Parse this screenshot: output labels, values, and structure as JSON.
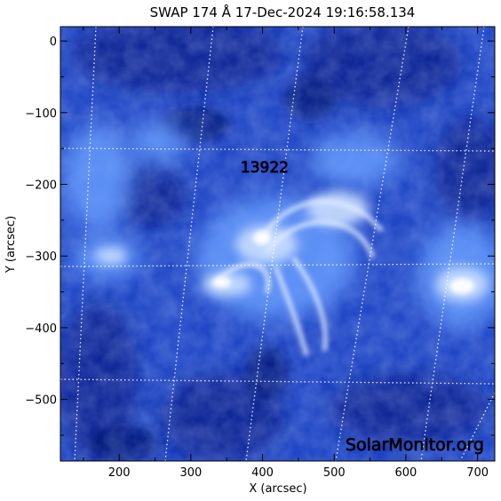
{
  "title": "SWAP 174 Å 17-Dec-2024 19:16:58.134",
  "axes": {
    "x_label": "X (arcsec)",
    "y_label": "Y (arcsec)",
    "x_range": [
      118,
      724
    ],
    "y_range": [
      -586,
      20
    ],
    "x_ticks": [
      {
        "value": 200,
        "label": "200"
      },
      {
        "value": 300,
        "label": "300"
      },
      {
        "value": 400,
        "label": "400"
      },
      {
        "value": 500,
        "label": "500"
      },
      {
        "value": 600,
        "label": "600"
      },
      {
        "value": 700,
        "label": "700"
      }
    ],
    "y_ticks": [
      {
        "value": 0,
        "label": "0"
      },
      {
        "value": -100,
        "label": "−100"
      },
      {
        "value": -200,
        "label": "−200"
      },
      {
        "value": -300,
        "label": "−300"
      },
      {
        "value": -400,
        "label": "−400"
      },
      {
        "value": -500,
        "label": "−500"
      }
    ]
  },
  "active_region": {
    "label": "13922",
    "x": 403,
    "y": -176
  },
  "watermark": "SolarMonitor.org",
  "colors": {
    "background": "#1f44c4",
    "dark": "#0a1f8c",
    "bright": "#e8f2ff",
    "grid": "#ffffff"
  }
}
